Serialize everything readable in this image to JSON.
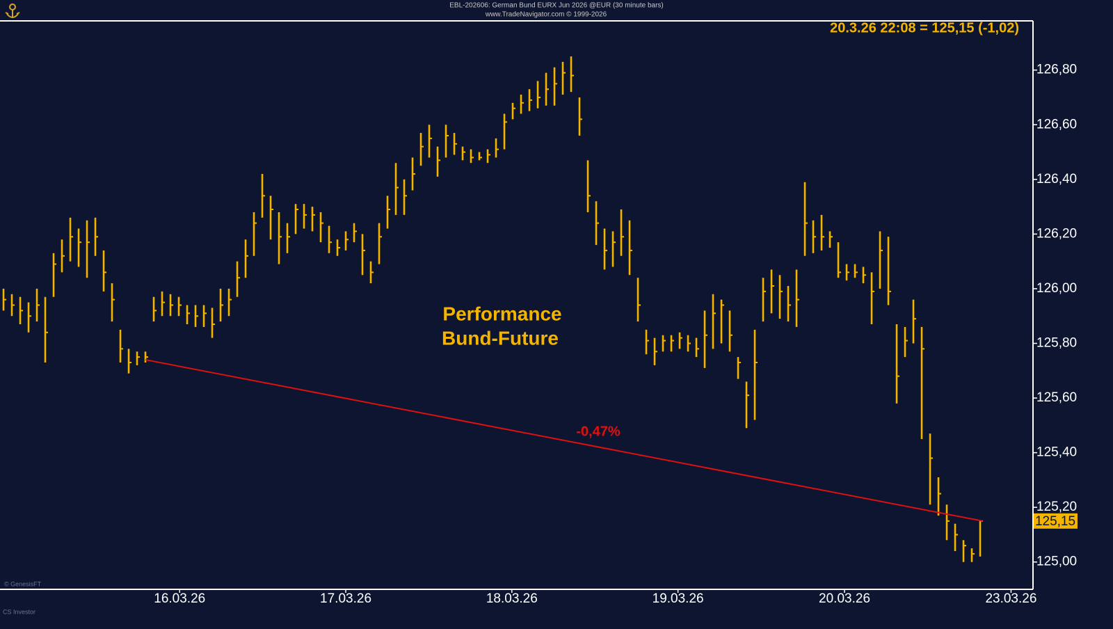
{
  "chart_data": {
    "type": "ohlc",
    "title": "EBL-202606: German Bund EURX Jun 2026 @EUR (30 minute bars)",
    "subtitle": "www.TradeNavigator.com © 1999-2026",
    "header_label": "20.3.26 22:08 = 125,15 (-1,02)",
    "annotation": [
      "Performance",
      "Bund-Future"
    ],
    "series": [
      {
        "color": "#f4b400",
        "high": [
          126.0,
          125.98,
          125.97,
          125.95,
          126.0,
          125.97,
          126.13,
          126.18,
          126.26,
          126.22,
          126.25,
          126.26,
          126.14,
          126.02,
          125.85,
          125.78,
          125.77,
          125.77,
          125.97,
          125.99,
          125.98,
          125.97,
          125.94,
          125.94,
          125.94,
          125.93,
          126.0,
          126.0,
          126.1,
          126.18,
          126.28,
          126.42,
          126.34,
          126.28,
          126.24,
          126.31,
          126.31,
          126.3,
          126.28,
          126.23,
          126.18,
          126.21,
          126.24,
          126.2,
          126.1,
          126.24,
          126.34,
          126.46,
          126.4,
          126.48,
          126.57,
          126.6,
          126.52,
          126.6,
          126.57,
          126.52,
          126.51,
          126.5,
          126.51,
          126.55,
          126.64,
          126.68,
          126.71,
          126.73,
          126.76,
          126.79,
          126.81,
          126.83,
          126.85,
          126.7,
          126.47,
          126.32,
          126.22,
          126.21,
          126.29,
          126.25,
          126.04,
          125.85,
          125.82,
          125.83,
          125.83,
          125.84,
          125.83,
          125.82,
          125.92,
          125.98,
          125.96,
          125.92,
          125.75,
          125.66,
          125.85,
          126.04,
          126.07,
          126.05,
          126.01,
          126.07,
          126.39,
          126.25,
          126.27,
          126.21,
          126.17,
          126.09,
          126.09,
          126.08,
          126.06,
          126.21,
          126.19,
          125.87,
          125.86,
          125.96,
          125.86,
          125.47,
          125.31,
          125.21,
          125.14,
          125.08,
          125.05,
          125.15
        ],
        "low": [
          125.92,
          125.9,
          125.87,
          125.84,
          125.88,
          125.73,
          125.97,
          126.06,
          126.1,
          126.08,
          126.04,
          126.12,
          125.99,
          125.88,
          125.73,
          125.69,
          125.72,
          125.73,
          125.88,
          125.9,
          125.9,
          125.9,
          125.87,
          125.86,
          125.86,
          125.82,
          125.88,
          125.9,
          125.97,
          126.04,
          126.12,
          126.26,
          126.18,
          126.09,
          126.13,
          126.2,
          126.22,
          126.21,
          126.17,
          126.13,
          126.12,
          126.14,
          126.17,
          126.05,
          126.02,
          126.09,
          126.22,
          126.27,
          126.27,
          126.36,
          126.45,
          126.48,
          126.41,
          126.48,
          126.49,
          126.47,
          126.46,
          126.47,
          126.46,
          126.48,
          126.51,
          126.62,
          126.64,
          126.65,
          126.66,
          126.67,
          126.67,
          126.71,
          126.72,
          126.56,
          126.28,
          126.16,
          126.07,
          126.08,
          126.12,
          126.05,
          125.88,
          125.76,
          125.72,
          125.77,
          125.77,
          125.78,
          125.77,
          125.75,
          125.71,
          125.78,
          125.8,
          125.77,
          125.67,
          125.49,
          125.52,
          125.88,
          125.91,
          125.89,
          125.88,
          125.86,
          126.12,
          126.13,
          126.14,
          126.15,
          126.04,
          126.03,
          126.04,
          126.02,
          125.87,
          126.0,
          125.94,
          125.58,
          125.75,
          125.8,
          125.45,
          125.21,
          125.17,
          125.08,
          125.04,
          125.0,
          125.0,
          125.02
        ],
        "close": [
          125.96,
          125.94,
          125.92,
          125.9,
          125.94,
          125.84,
          126.09,
          126.12,
          126.19,
          126.17,
          126.17,
          126.19,
          126.06,
          125.96,
          125.78,
          125.73,
          125.75,
          125.75,
          125.92,
          125.95,
          125.94,
          125.94,
          125.91,
          125.9,
          125.91,
          125.87,
          125.94,
          125.96,
          126.04,
          126.12,
          126.24,
          126.34,
          126.29,
          126.19,
          126.19,
          126.29,
          126.27,
          126.27,
          126.24,
          126.17,
          126.15,
          126.18,
          126.21,
          126.14,
          126.06,
          126.19,
          126.29,
          126.37,
          126.34,
          126.42,
          126.52,
          126.55,
          126.47,
          126.56,
          126.53,
          126.5,
          126.48,
          126.48,
          126.49,
          126.51,
          126.61,
          126.66,
          126.68,
          126.69,
          126.7,
          126.73,
          126.75,
          126.79,
          126.78,
          126.62,
          126.34,
          126.24,
          126.14,
          126.17,
          126.19,
          126.14,
          125.94,
          125.81,
          125.77,
          125.81,
          125.81,
          125.82,
          125.8,
          125.78,
          125.83,
          125.91,
          125.94,
          125.83,
          125.73,
          125.61,
          125.73,
          125.99,
          126.01,
          125.99,
          125.94,
          125.96,
          126.24,
          126.19,
          126.19,
          126.19,
          126.06,
          126.06,
          126.06,
          126.05,
          125.99,
          126.14,
          125.99,
          125.68,
          125.81,
          125.89,
          125.78,
          125.38,
          125.25,
          125.15,
          125.1,
          125.06,
          125.03,
          125.15
        ]
      }
    ],
    "xlim": [
      -0.42,
      123.33
    ],
    "xticks": [
      {
        "value": 21.1,
        "label": "16.03.26"
      },
      {
        "value": 41,
        "label": "17.03.26"
      },
      {
        "value": 60.9,
        "label": "18.03.26"
      },
      {
        "value": 80.8,
        "label": "19.03.26"
      },
      {
        "value": 100.75,
        "label": "20.03.26"
      },
      {
        "value": 120.7,
        "label": "23.03.26"
      }
    ],
    "ylim": [
      124.9,
      126.98
    ],
    "yticks": [
      {
        "value": 125.0,
        "label": "125,00"
      },
      {
        "value": 125.2,
        "label": "125,20"
      },
      {
        "value": 125.4,
        "label": "125,40"
      },
      {
        "value": 125.6,
        "label": "125,60"
      },
      {
        "value": 125.8,
        "label": "125,80"
      },
      {
        "value": 126.0,
        "label": "126,00"
      },
      {
        "value": 126.2,
        "label": "126,20"
      },
      {
        "value": 126.4,
        "label": "126,40"
      },
      {
        "value": 126.6,
        "label": "126,60"
      },
      {
        "value": 126.8,
        "label": "126,80"
      }
    ],
    "trendline": {
      "x": [
        17,
        117.3
      ],
      "y": [
        125.74,
        125.15
      ],
      "color": "#e01010",
      "label": "-0,47%"
    },
    "last_price": {
      "value": 125.15,
      "label": "125,15"
    },
    "footer": [
      "© GenesisFT",
      "CS Investor"
    ]
  }
}
